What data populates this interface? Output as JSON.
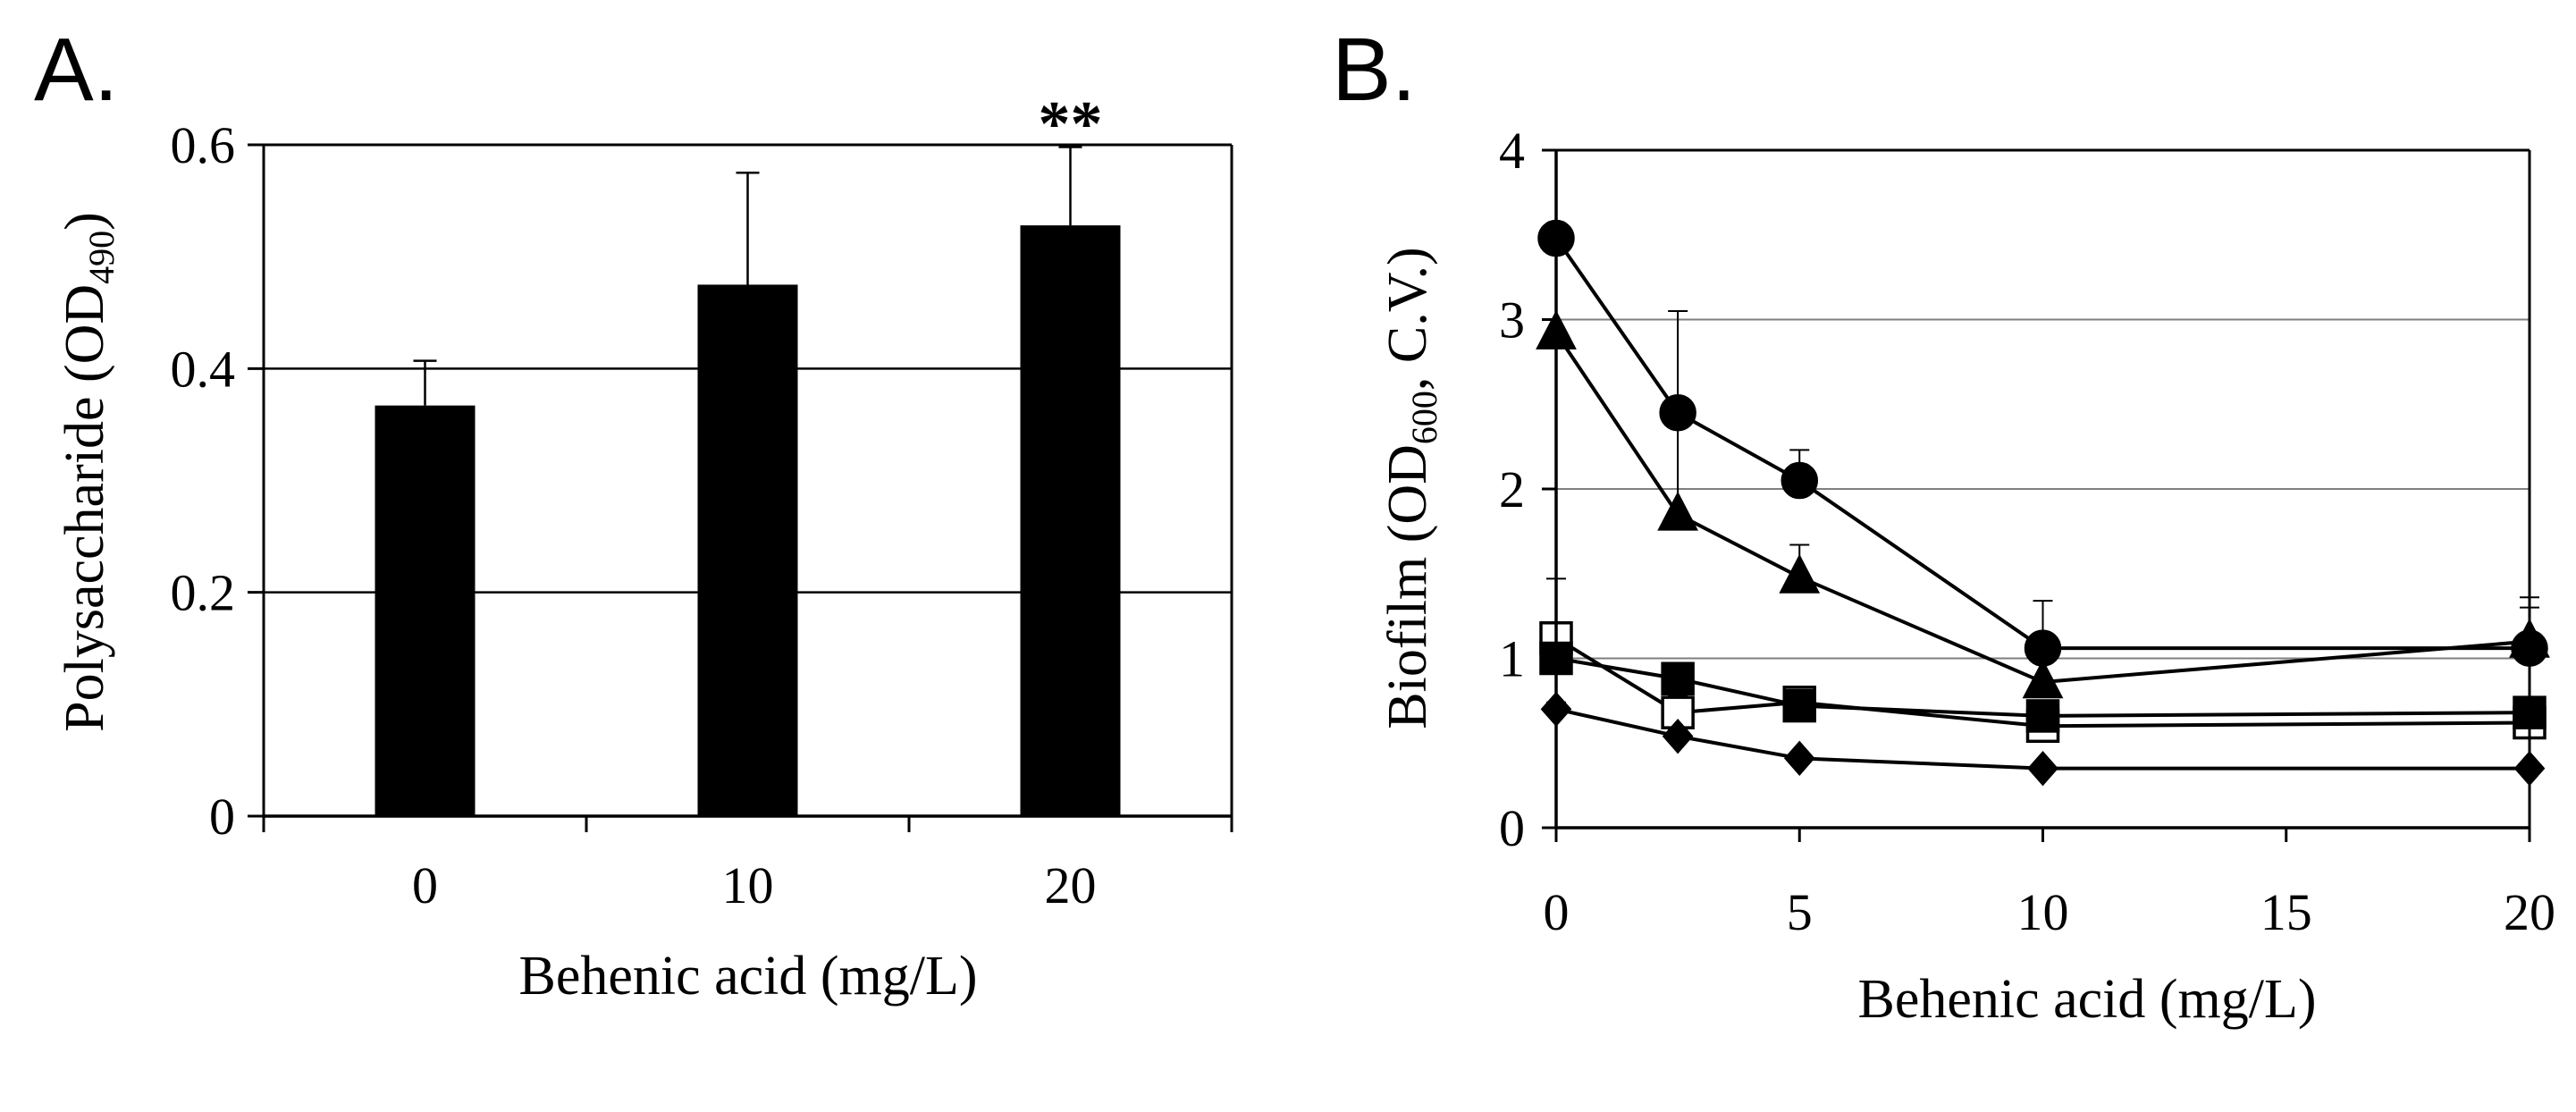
{
  "chart_data": [
    {
      "panel_label": "A.",
      "type": "bar",
      "categories": [
        "0",
        "10",
        "20"
      ],
      "values": [
        0.367,
        0.475,
        0.528
      ],
      "errors": [
        0.04,
        0.1,
        0.07
      ],
      "significance": [
        "",
        "",
        "**"
      ],
      "xlabel": "Behenic acid (mg/L)",
      "ylabel": {
        "main": "Polysaccharide (OD",
        "sub": "490",
        "close": ")"
      },
      "ylim": [
        0,
        0.6
      ],
      "yticks": [
        "0",
        "0.2",
        "0.4",
        "0.6"
      ],
      "grid": true,
      "colors": {
        "bar": "#000000",
        "grid": "#000000",
        "axis": "#000000"
      }
    },
    {
      "panel_label": "B.",
      "type": "line",
      "x": [
        0,
        2.5,
        5,
        10,
        20
      ],
      "xticks": [
        "0",
        "5",
        "10",
        "15",
        "20"
      ],
      "yticks": [
        "0",
        "1",
        "2",
        "3",
        "4"
      ],
      "xlim": [
        0,
        20
      ],
      "ylim": [
        0,
        4
      ],
      "xlabel": "Behenic acid (mg/L)",
      "ylabel": {
        "main": "Biofilm (OD",
        "sub": "600",
        "close": ", C.V.)"
      },
      "grid": true,
      "series": [
        {
          "marker": "circle",
          "fill": "#000000",
          "values": [
            3.48,
            2.45,
            2.05,
            1.06,
            1.06
          ],
          "errors": [
            0,
            0.6,
            0.18,
            0.28,
            0.3
          ]
        },
        {
          "marker": "triangle",
          "fill": "#000000",
          "values": [
            2.92,
            1.85,
            1.48,
            0.86,
            1.1
          ],
          "errors": [
            0.48,
            0.57,
            0.19,
            0.15,
            0.2
          ]
        },
        {
          "marker": "square",
          "fill": "#ffffff",
          "values": [
            1.12,
            0.68,
            0.74,
            0.6,
            0.62
          ],
          "errors": [
            0.35,
            0.1,
            0.08,
            0.06,
            0.1
          ]
        },
        {
          "marker": "square",
          "fill": "#000000",
          "values": [
            1.0,
            0.88,
            0.72,
            0.66,
            0.68
          ],
          "errors": [
            0.1,
            0.06,
            0.06,
            0.05,
            0.08
          ]
        },
        {
          "marker": "diamond",
          "fill": "#000000",
          "values": [
            0.7,
            0.54,
            0.41,
            0.35,
            0.35
          ],
          "errors": [
            0.04,
            0.04,
            0.03,
            0.03,
            0.03
          ]
        }
      ],
      "colors": {
        "line": "#000000",
        "grid": "#7f7f7f",
        "axis": "#000000"
      }
    }
  ]
}
